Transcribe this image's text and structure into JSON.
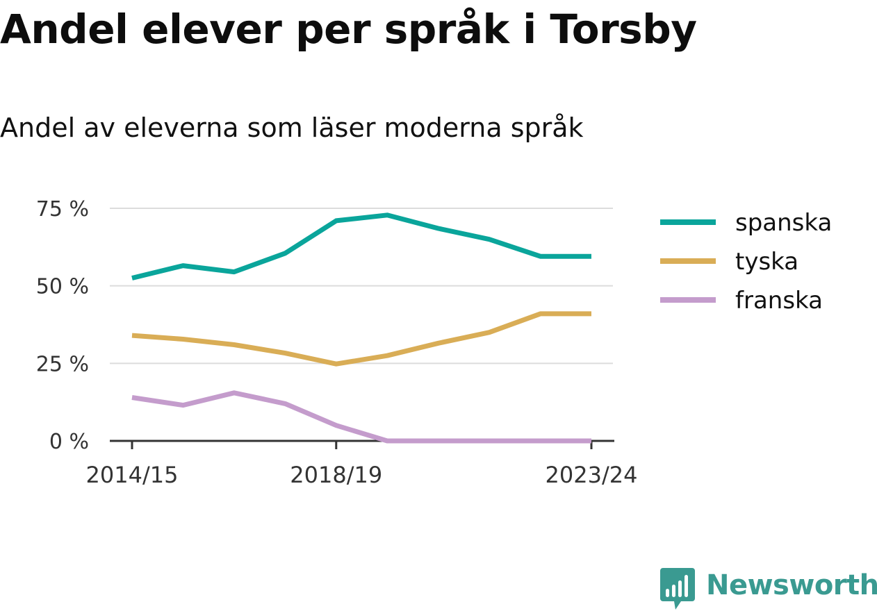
{
  "header": {
    "title": "Andel elever per språk i Torsby",
    "subtitle": "Andel av eleverna som läser moderna språk"
  },
  "brand": {
    "name": "Newsworthy",
    "icon": "newsworthy-chart-bubble-icon",
    "color": "#3a9a91"
  },
  "chart_data": {
    "type": "line",
    "x": [
      "2014/15",
      "2015/16",
      "2016/17",
      "2017/18",
      "2018/19",
      "2019/20",
      "2020/21",
      "2021/22",
      "2022/23",
      "2023/24"
    ],
    "x_tick_labels": [
      "2014/15",
      "2018/19",
      "2023/24"
    ],
    "y_tick_labels": [
      "0 %",
      "25 %",
      "50 %",
      "75 %"
    ],
    "y_ticks": [
      0,
      25,
      50,
      75
    ],
    "ylim": [
      0,
      75
    ],
    "grid": true,
    "legend_position": "right",
    "series": [
      {
        "name": "spanska",
        "color": "#0aa59b",
        "values": [
          52.5,
          56.5,
          54.5,
          60.5,
          71.0,
          72.8,
          68.5,
          65.0,
          59.5,
          59.5
        ]
      },
      {
        "name": "tyska",
        "color": "#d9ad56",
        "values": [
          34.0,
          32.8,
          31.0,
          28.3,
          24.8,
          27.5,
          31.5,
          35.0,
          41.0,
          41.0
        ]
      },
      {
        "name": "franska",
        "color": "#c49ccc",
        "values": [
          14.0,
          11.5,
          15.5,
          12.0,
          5.0,
          0.0,
          0.0,
          0.0,
          0.0,
          0.0
        ]
      }
    ]
  }
}
